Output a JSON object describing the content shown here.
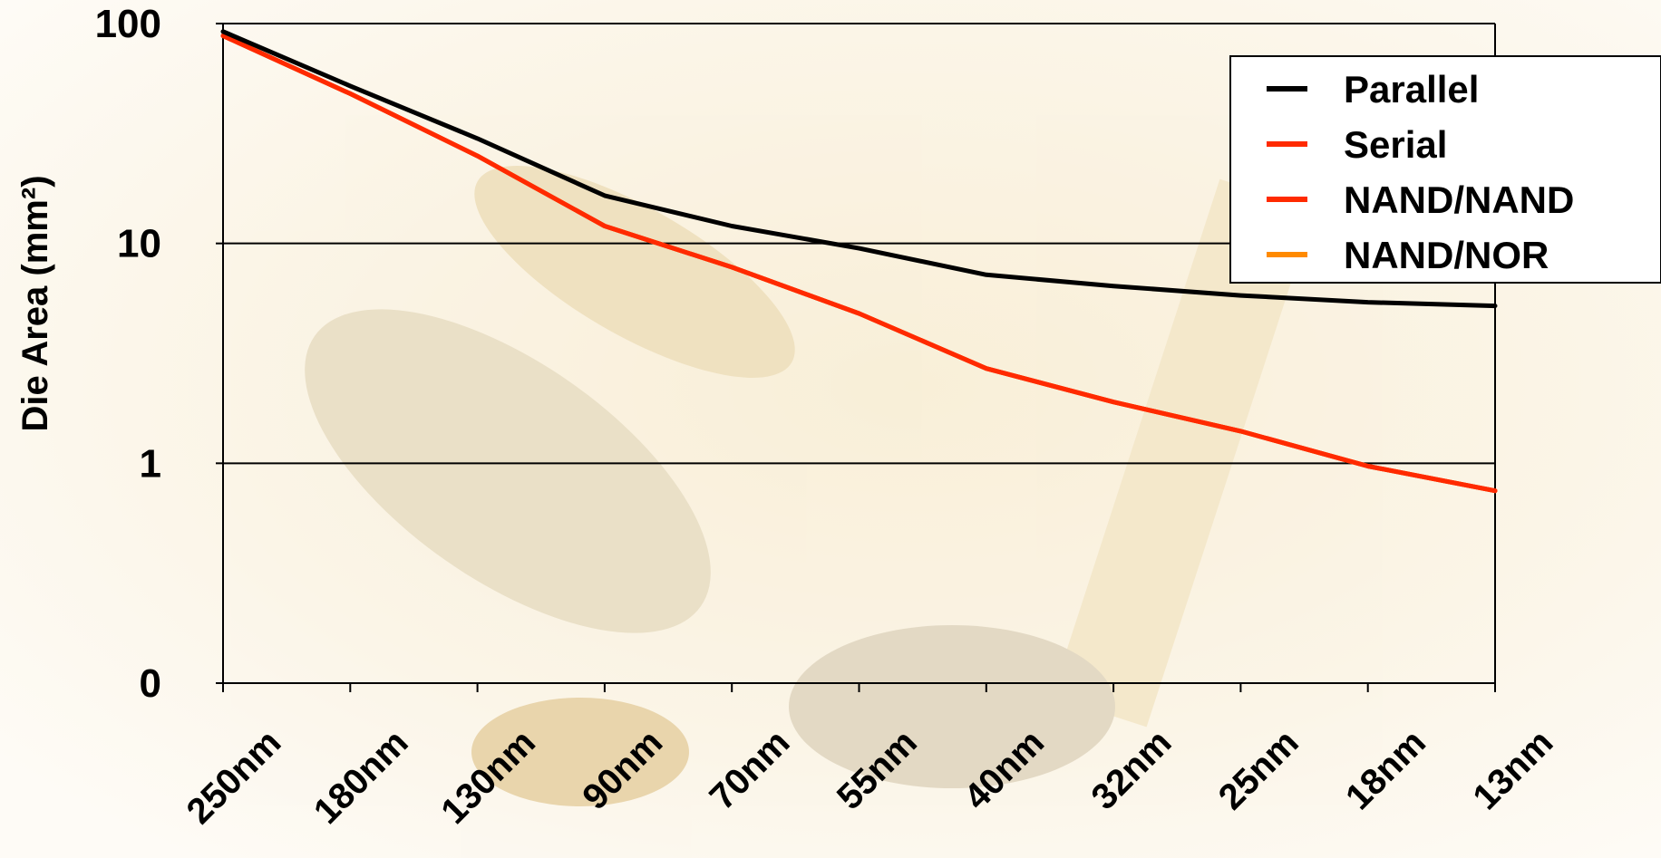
{
  "chart_data": {
    "type": "line",
    "title": "",
    "xlabel": "",
    "ylabel": "Die Area (mm²)",
    "yscale": "log",
    "y_ticks": [
      {
        "value": 100,
        "label": "100"
      },
      {
        "value": 10,
        "label": "10"
      },
      {
        "value": 1,
        "label": "1"
      },
      {
        "value": 0.1,
        "label": "0"
      }
    ],
    "ylim": [
      0.1,
      100
    ],
    "grid": "horizontal",
    "legend_position": "top-right",
    "categories": [
      "250nm",
      "180nm",
      "130nm",
      "90nm",
      "70nm",
      "55nm",
      "40nm",
      "32nm",
      "25nm",
      "18nm",
      "13nm"
    ],
    "series": [
      {
        "name": "Parallel",
        "color": "#000000",
        "values": [
          92,
          52,
          30,
          16.5,
          12,
          9.5,
          7.2,
          6.4,
          5.8,
          5.4,
          5.2
        ]
      },
      {
        "name": "Serial",
        "color": "#ff2a00",
        "values": [
          88,
          48,
          25,
          12,
          7.8,
          4.8,
          2.7,
          1.9,
          1.4,
          0.97,
          0.75
        ]
      },
      {
        "name": "NAND/NAND",
        "color": "#ff2a00",
        "values": [
          88,
          48,
          25,
          12,
          7.8,
          4.8,
          2.7,
          1.9,
          1.4,
          0.97,
          0.75
        ]
      },
      {
        "name": "NAND/NOR",
        "color": "#ff8a00",
        "values": [
          88,
          48,
          25,
          12,
          7.8,
          4.8,
          2.7,
          1.9,
          1.4,
          0.97,
          0.75
        ]
      }
    ],
    "legend_entries": [
      "Parallel",
      "Serial",
      "NAND/NAND",
      "NAND/NOR"
    ]
  }
}
